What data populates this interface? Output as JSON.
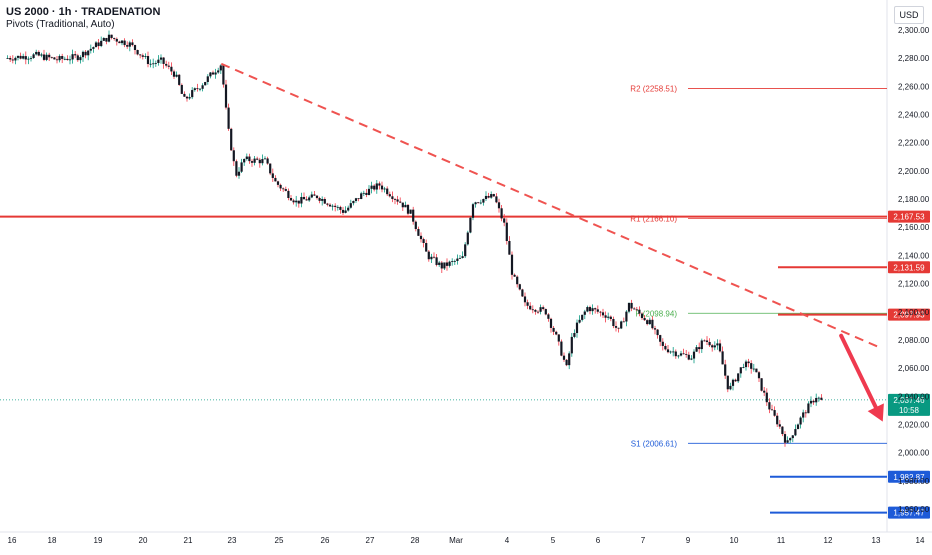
{
  "header": {
    "title": "US 2000 · 1h · TRADENATION",
    "indicator": "Pivots (Traditional, Auto)",
    "currency": "USD"
  },
  "colors": {
    "up": "#089981",
    "down": "#f23645",
    "candle_body": "#131722",
    "resistance": "#e53935",
    "support": "#1e5bd8",
    "pivot": "#4caf50",
    "trendline": "#ef5350",
    "arrow": "#ef3a4f",
    "last_price_bg": "#089981"
  },
  "chart_data": {
    "type": "candlestick",
    "x_ticks": [
      "16",
      "18",
      "19",
      "20",
      "21",
      "23",
      "25",
      "26",
      "27",
      "28",
      "Mar",
      "4",
      "5",
      "6",
      "7",
      "9",
      "10",
      "11",
      "12",
      "13",
      "14"
    ],
    "y_ticks": [
      "2,300.00",
      "2,280.00",
      "2,260.00",
      "2,240.00",
      "2,220.00",
      "2,200.00",
      "2,180.00",
      "2,160.00",
      "2,140.00",
      "2,120.00",
      "2,100.00",
      "2,080.00",
      "2,060.00",
      "2,040.00",
      "2,020.00",
      "2,000.00",
      "1,980.00",
      "1,960.00"
    ],
    "ylim": [
      1950,
      2312
    ],
    "close_path": [
      [
        0,
        2280
      ],
      [
        1.5,
        2282
      ],
      [
        2.5,
        2279
      ],
      [
        3.5,
        2281
      ],
      [
        5,
        2295
      ],
      [
        6,
        2290
      ],
      [
        7,
        2276
      ],
      [
        7.5,
        2278
      ],
      [
        8.2,
        2268
      ],
      [
        8.6,
        2250
      ],
      [
        9.5,
        2262
      ],
      [
        10.4,
        2276
      ],
      [
        10.7,
        2232
      ],
      [
        11.1,
        2197
      ],
      [
        11.5,
        2208
      ],
      [
        12.5,
        2207
      ],
      [
        13,
        2192
      ],
      [
        14,
        2178
      ],
      [
        15,
        2182
      ],
      [
        16.3,
        2171
      ],
      [
        17.2,
        2184
      ],
      [
        18,
        2190
      ],
      [
        19,
        2178
      ],
      [
        19.5,
        2170
      ],
      [
        20.3,
        2140
      ],
      [
        21,
        2132
      ],
      [
        22,
        2138
      ],
      [
        22.5,
        2178
      ],
      [
        23.5,
        2182
      ],
      [
        24,
        2162
      ],
      [
        24.4,
        2126
      ],
      [
        25,
        2105
      ],
      [
        26,
        2100
      ],
      [
        26.5,
        2082
      ],
      [
        27,
        2060
      ],
      [
        27.3,
        2085
      ],
      [
        28,
        2103
      ],
      [
        29,
        2097
      ],
      [
        29.5,
        2086
      ],
      [
        30,
        2105
      ],
      [
        31,
        2092
      ],
      [
        31.6,
        2075
      ],
      [
        32.4,
        2070
      ],
      [
        33,
        2068
      ],
      [
        33.6,
        2080
      ],
      [
        34.3,
        2075
      ],
      [
        34.8,
        2044
      ],
      [
        35.5,
        2063
      ],
      [
        36,
        2060
      ],
      [
        36.4,
        2045
      ],
      [
        36.8,
        2030
      ],
      [
        37.2,
        2020
      ],
      [
        37.6,
        2006
      ],
      [
        38,
        2018
      ],
      [
        38.5,
        2030
      ],
      [
        39,
        2040
      ],
      [
        39.3,
        2036
      ]
    ],
    "levels": [
      {
        "label": "R2 (2258.51)",
        "value": 2258.51,
        "type": "pivot-resistance"
      },
      {
        "label": "R1 (2166.10)",
        "value": 2166.1,
        "type": "pivot-resistance"
      },
      {
        "label": "P (2098.94)",
        "value": 2098.94,
        "type": "pivot"
      },
      {
        "label": "S1 (2006.61)",
        "value": 2006.61,
        "type": "pivot-support"
      }
    ],
    "horizontal_lines": [
      {
        "value": 2167.53,
        "label": "2,167.53",
        "kind": "resistance",
        "extends": "full"
      },
      {
        "value": 2131.59,
        "label": "2,131.59",
        "kind": "resistance",
        "extends": "right"
      },
      {
        "value": 2097.93,
        "label": "2,097.93",
        "kind": "resistance",
        "extends": "right"
      },
      {
        "value": 1982.87,
        "label": "1,982.87",
        "kind": "support",
        "extends": "right"
      },
      {
        "value": 1957.47,
        "label": "1,957.47",
        "kind": "support",
        "extends": "right"
      }
    ],
    "last_price": {
      "value": 2037.46,
      "label": "2,037.46",
      "countdown": "10:58"
    },
    "trendline": {
      "from": [
        10.4,
        2276
      ],
      "to": [
        42,
        2075
      ]
    },
    "forecast_arrow": {
      "from": [
        40.2,
        2083
      ],
      "to": [
        42.2,
        2022
      ]
    }
  }
}
